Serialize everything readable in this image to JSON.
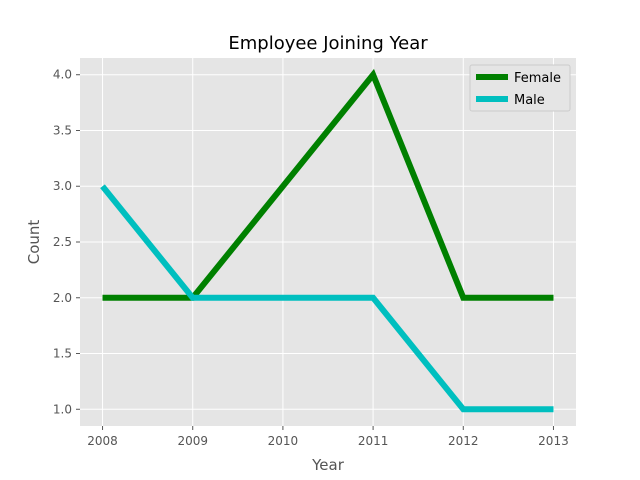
{
  "chart_data": {
    "type": "line",
    "title": "Employee Joining Year",
    "xlabel": "Year",
    "ylabel": "Count",
    "x": [
      2008,
      2009,
      2010,
      2011,
      2012,
      2013
    ],
    "x_tick_labels": [
      "2008",
      "2009",
      "2010",
      "2011",
      "2012",
      "2013"
    ],
    "xlim": [
      2007.75,
      2013.25
    ],
    "ylim": [
      0.85,
      4.15
    ],
    "y_ticks": [
      1.0,
      1.5,
      2.0,
      2.5,
      3.0,
      3.5,
      4.0
    ],
    "y_tick_labels": [
      "1.0",
      "1.5",
      "2.0",
      "2.5",
      "3.0",
      "3.5",
      "4.0"
    ],
    "grid": true,
    "legend_position": "top-right",
    "plot_background": "#e5e5e5",
    "grid_color": "#ffffff",
    "series": [
      {
        "name": "Female",
        "color": "#008000",
        "values": [
          2,
          2,
          3,
          4,
          2,
          2
        ]
      },
      {
        "name": "Male",
        "color": "#00bfbf",
        "values": [
          3,
          2,
          2,
          2,
          1,
          1
        ]
      }
    ]
  }
}
